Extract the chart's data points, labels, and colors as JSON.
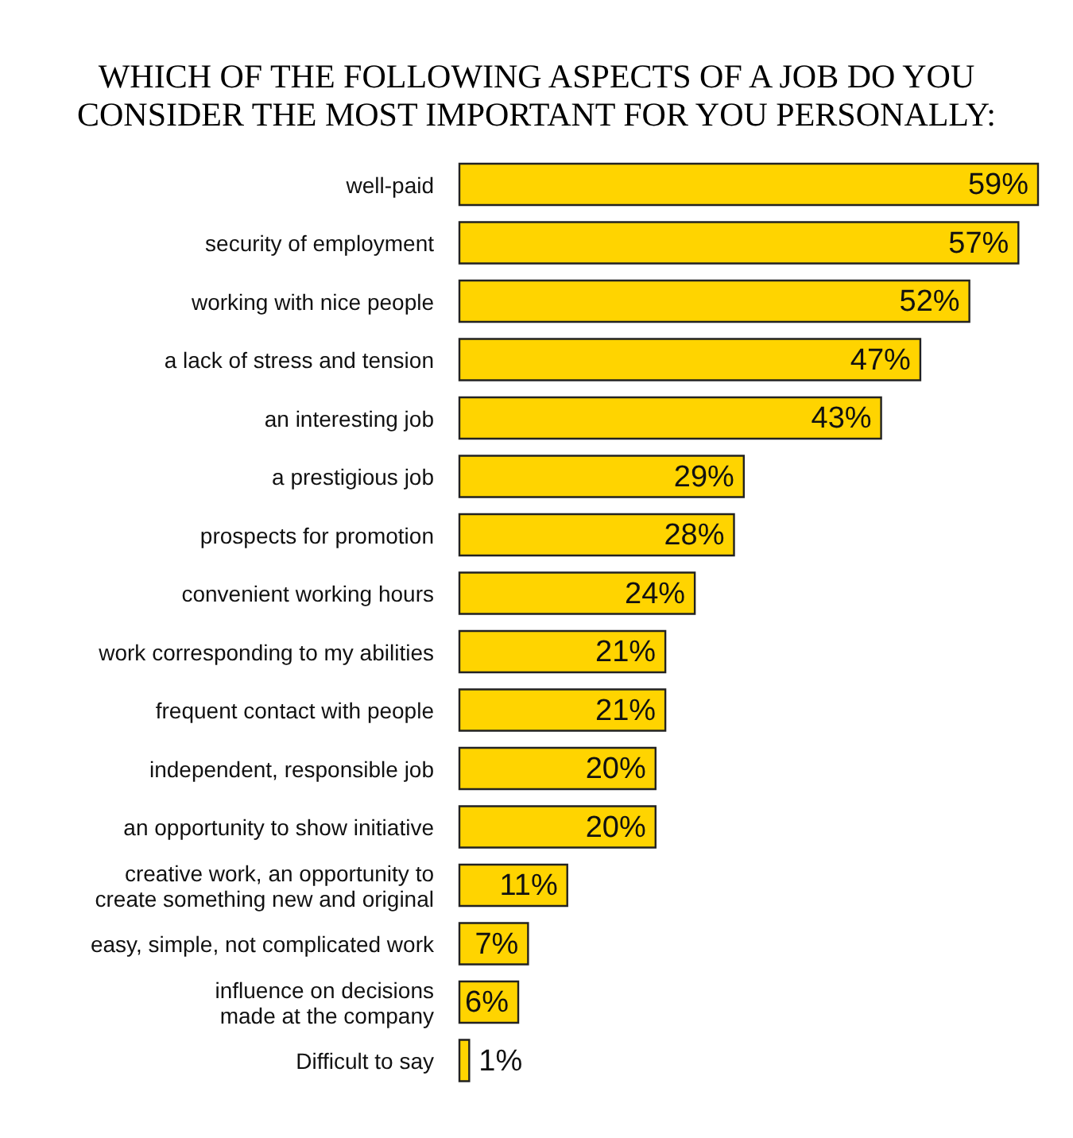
{
  "chart_data": {
    "type": "bar",
    "orientation": "horizontal",
    "title": "WHICH OF THE FOLLOWING ASPECTS OF A JOB DO YOU CONSIDER THE MOST IMPORTANT FOR YOU PERSONALLY:",
    "categories": [
      "well-paid",
      "security of employment",
      "working with nice people",
      "a lack of stress and tension",
      "an interesting job",
      "a prestigious job",
      "prospects for promotion",
      "convenient working hours",
      "work corresponding to my abilities",
      "frequent contact with people",
      "independent, responsible job",
      "an opportunity to show initiative",
      "creative work, an opportunity to create something new and original",
      "easy, simple, not complicated work",
      "influence on decisions made at the company",
      "Difficult to say"
    ],
    "values": [
      59,
      57,
      52,
      47,
      43,
      29,
      28,
      24,
      21,
      21,
      20,
      20,
      11,
      7,
      6,
      1
    ],
    "value_labels": [
      "59%",
      "57%",
      "52%",
      "47%",
      "43%",
      "29%",
      "28%",
      "24%",
      "21%",
      "21%",
      "20%",
      "20%",
      "11%",
      "7%",
      "6%",
      "1%"
    ],
    "color": "#ffd400",
    "grid": false,
    "legend": false
  }
}
